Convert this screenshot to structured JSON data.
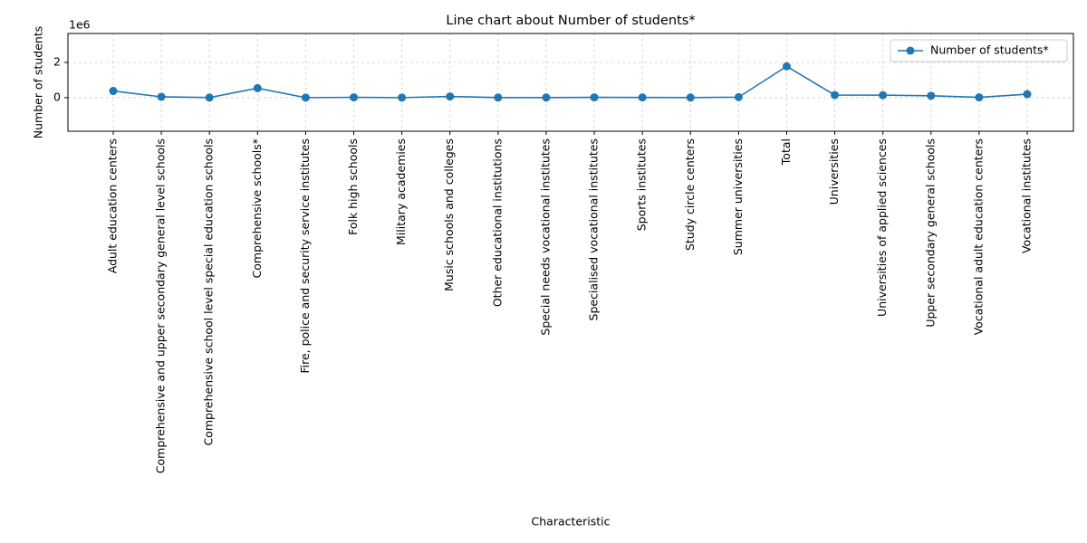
{
  "chart_data": {
    "type": "line",
    "title": "Line chart about Number of students*",
    "x_label": "Characteristic",
    "y_label": "Number of students",
    "y_offset_label": "1e6",
    "categories": [
      "Adult education centers",
      "Comprehensive and upper secondary general level schools",
      "Comprehensive school level special education schools",
      "Comprehensive schools*",
      "Fire, police and security service institutes",
      "Folk high schools",
      "Military academies",
      "Music schools and colleges",
      "Other educational institutions",
      "Special needs vocational institutes",
      "Specialised vocational institutes",
      "Sports institutes",
      "Study circle centers",
      "Summer universities",
      "Total",
      "Universities",
      "Universities of applied sciences",
      "Upper secondary general schools",
      "Vocational adult education centers",
      "Vocational institutes"
    ],
    "series": [
      {
        "name": "Number of students*",
        "color": "#1f77b4",
        "values": [
          380000,
          50000,
          10000,
          540000,
          5000,
          20000,
          5000,
          70000,
          10000,
          10000,
          20000,
          15000,
          10000,
          30000,
          1780000,
          150000,
          145000,
          110000,
          20000,
          200000
        ]
      }
    ],
    "ylim": [
      -1900000,
      3640000
    ],
    "yticks": [
      0,
      {
        "value": 2000000,
        "label": "2"
      }
    ],
    "grid": true,
    "legend": "upper right"
  }
}
